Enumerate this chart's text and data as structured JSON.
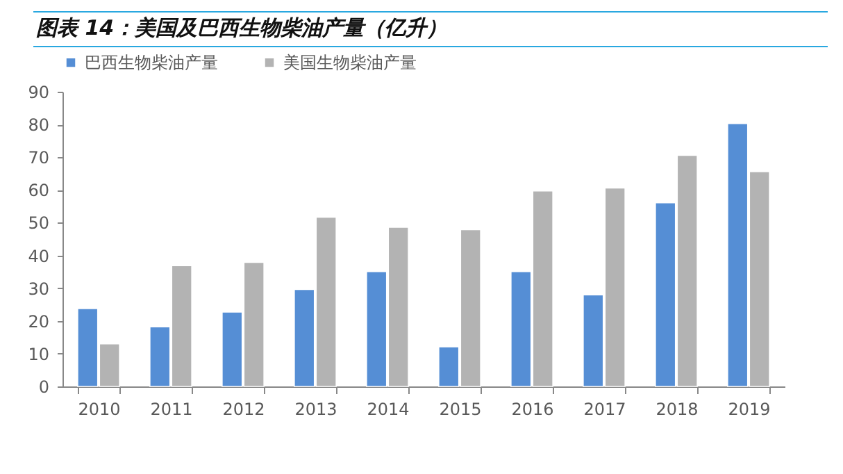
{
  "chart_data": {
    "type": "bar",
    "title": "图表 14：美国及巴西生物柴油产量（亿升）",
    "categories": [
      "2010",
      "2011",
      "2012",
      "2013",
      "2014",
      "2015",
      "2016",
      "2017",
      "2018",
      "2019"
    ],
    "series": [
      {
        "name": "巴西生物柴油产量",
        "color": "#558ed5",
        "values": [
          23.8,
          18.2,
          22.7,
          29.6,
          35.1,
          12.1,
          35.1,
          28.0,
          56.1,
          80.3
        ]
      },
      {
        "name": "美国生物柴油产量",
        "color": "#b3b3b3",
        "values": [
          13.0,
          36.9,
          37.9,
          51.7,
          48.6,
          47.9,
          59.7,
          60.6,
          70.6,
          65.6
        ]
      }
    ],
    "ylim": [
      0,
      90
    ],
    "yticks": [
      0,
      10,
      20,
      30,
      40,
      50,
      60,
      70,
      80,
      90
    ],
    "grid": false,
    "legend": "top"
  }
}
